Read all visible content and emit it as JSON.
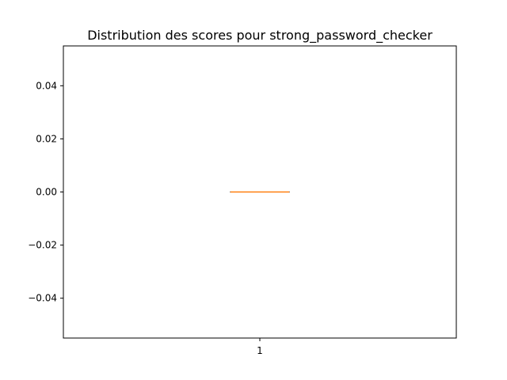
{
  "chart_data": {
    "type": "box",
    "title": "Distribution des scores pour strong_password_checker",
    "xlabel": "",
    "ylabel": "",
    "categories": [
      "1"
    ],
    "ylim": [
      -0.055,
      0.055
    ],
    "y_ticks": [
      0.04,
      0.02,
      0.0,
      -0.02,
      -0.04
    ],
    "y_tick_labels": [
      "0.04",
      "0.02",
      "0.00",
      "−0.02",
      "−0.04"
    ],
    "x_tick_labels": [
      "1"
    ],
    "boxes": [
      {
        "category": "1",
        "min": 0.0,
        "q1": 0.0,
        "median": 0.0,
        "q3": 0.0,
        "max": 0.0
      }
    ],
    "grid": false,
    "colors": {
      "box": "#000000",
      "median": "#ff7f0e",
      "axes": "#000000"
    }
  }
}
